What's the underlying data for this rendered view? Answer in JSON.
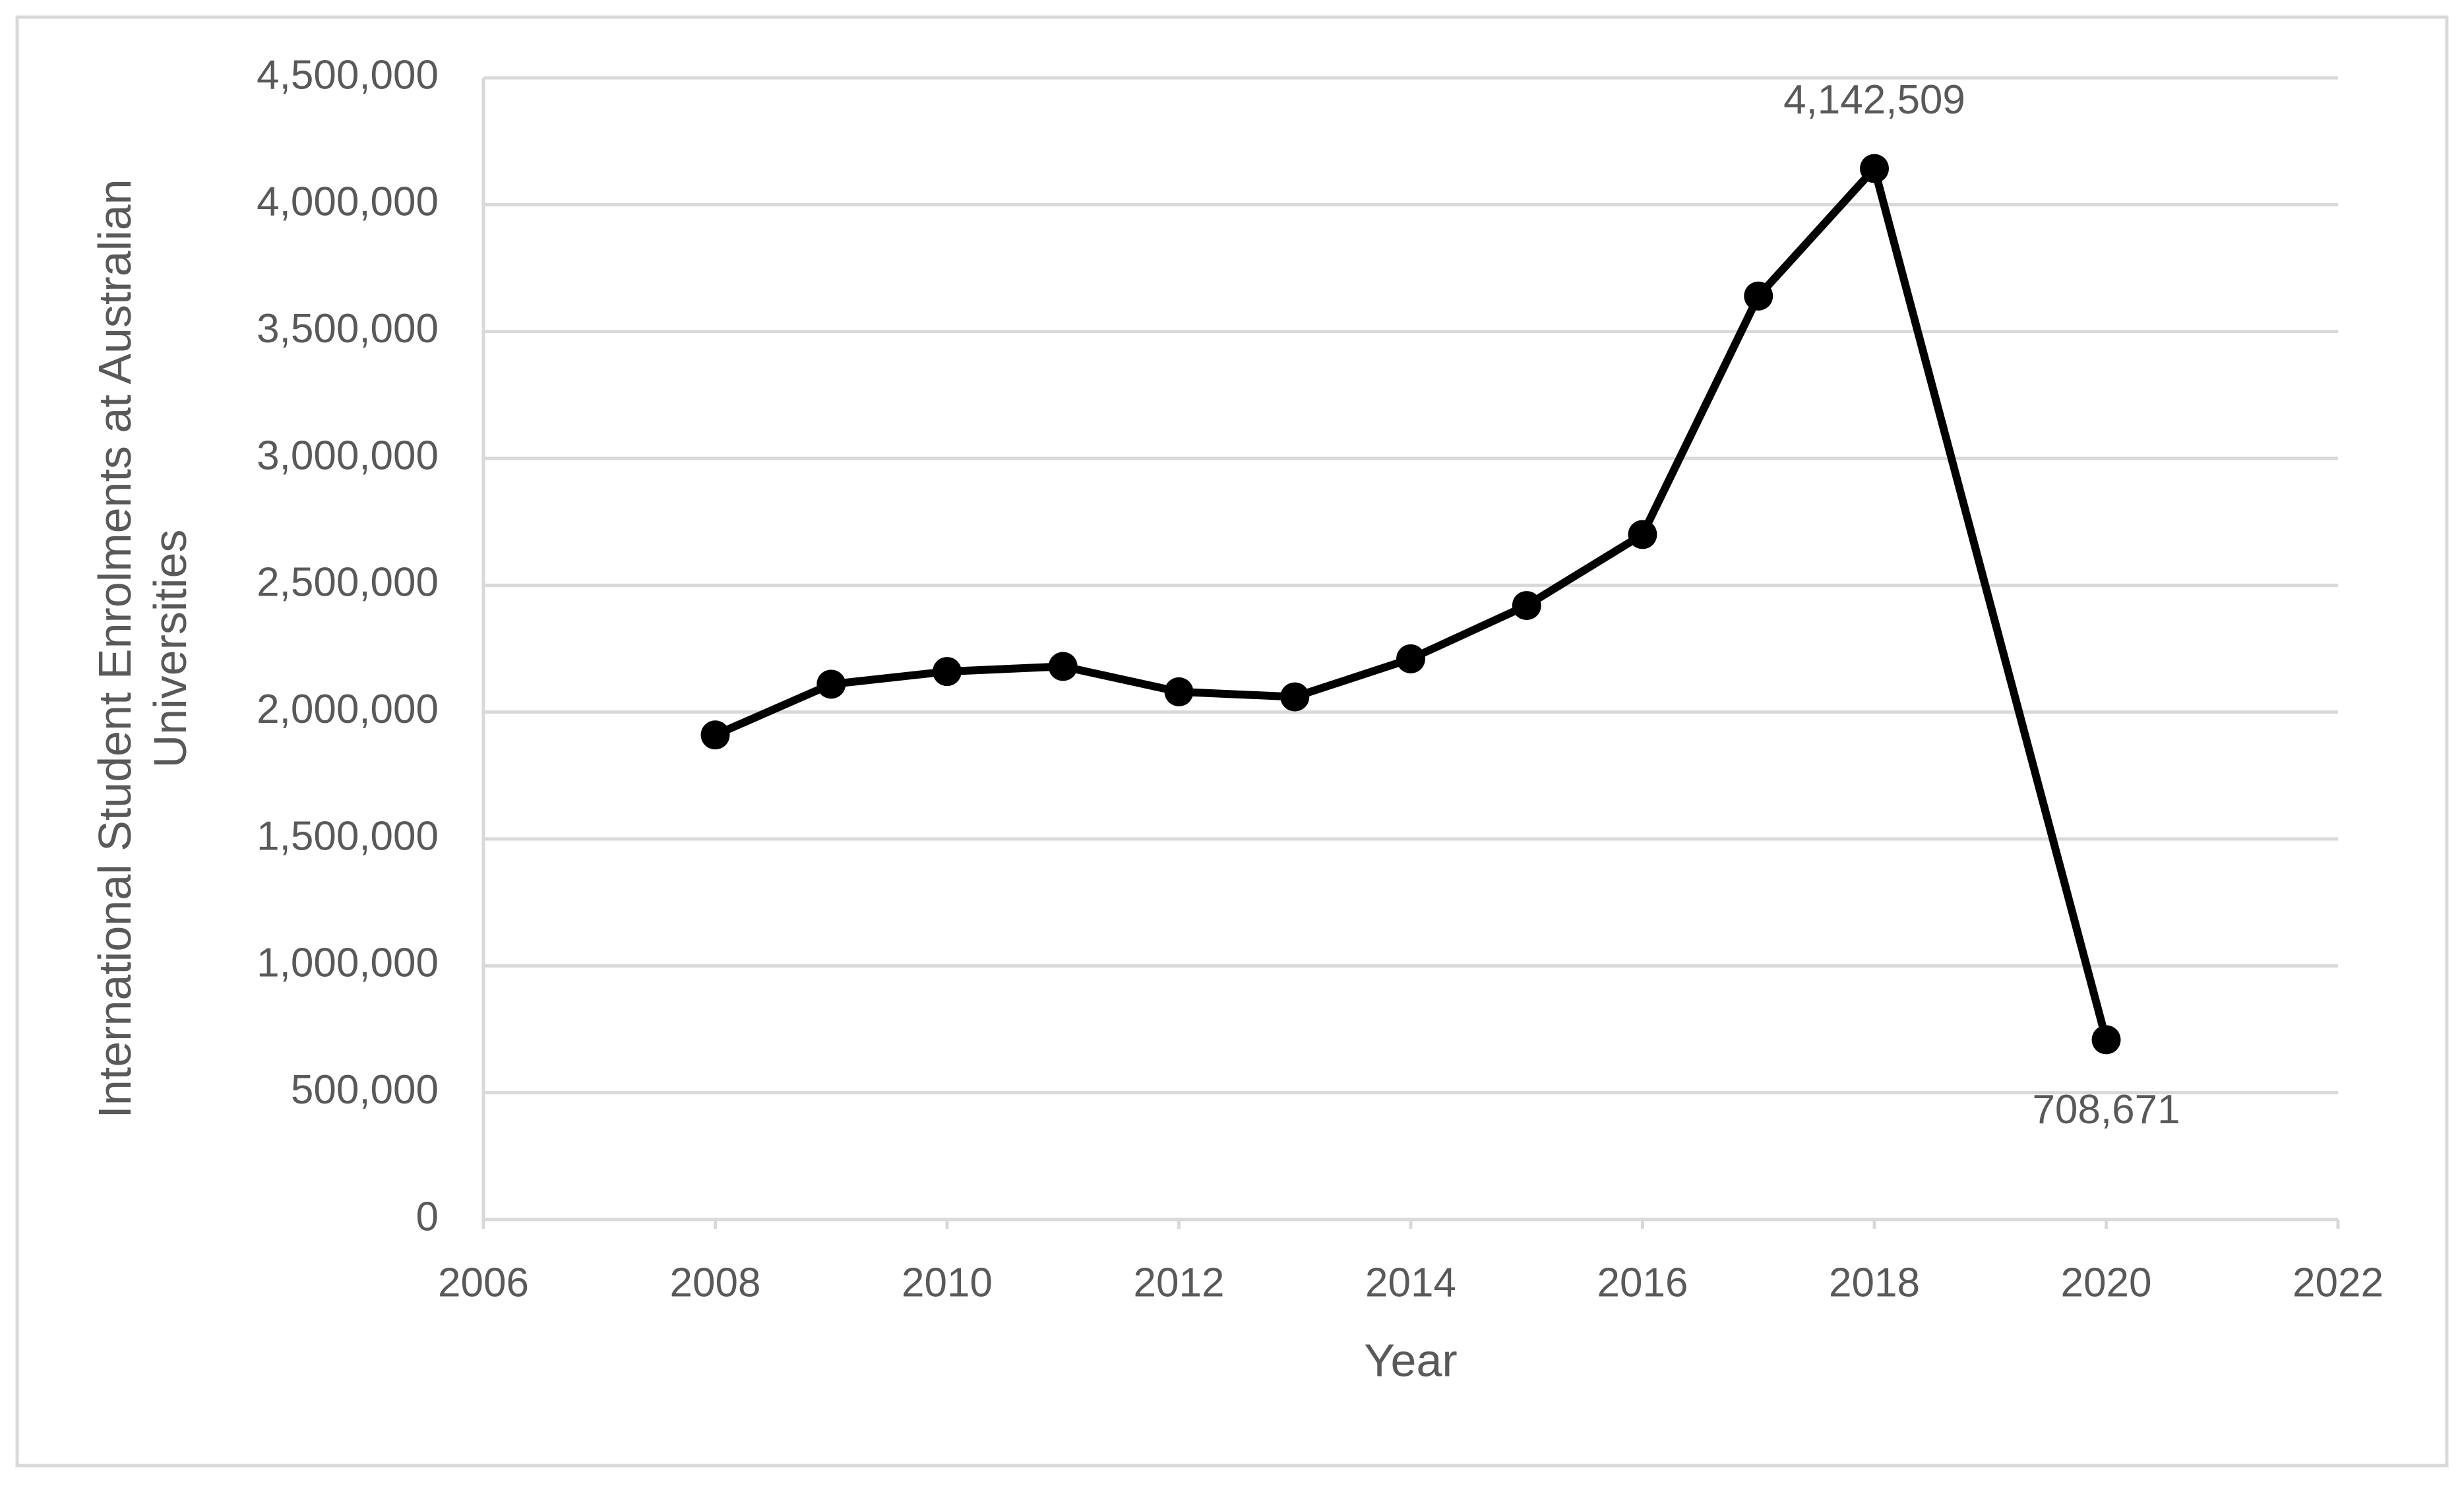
{
  "chart_data": {
    "type": "scatter",
    "subtype": "scatter-with-lines-and-markers",
    "title": "",
    "xlabel": "Year",
    "ylabel": "International Student Enrolments at Australian Universities",
    "xlim": [
      2006,
      2022
    ],
    "ylim": [
      0,
      4500000
    ],
    "x_ticks": [
      "2006",
      "2008",
      "2010",
      "2012",
      "2014",
      "2016",
      "2018",
      "2020",
      "2022"
    ],
    "y_ticks": [
      "0",
      "500,000",
      "1,000,000",
      "1,500,000",
      "2,000,000",
      "2,500,000",
      "3,000,000",
      "3,500,000",
      "4,000,000",
      "4,500,000"
    ],
    "grid": "horizontal",
    "legend": "none",
    "series": [
      {
        "x": [
          2008,
          2009,
          2010,
          2011,
          2012,
          2013,
          2014,
          2015,
          2016,
          2017,
          2018,
          2020
        ],
        "y": [
          1910000,
          2110000,
          2160000,
          2180000,
          2080000,
          2060000,
          2210000,
          2420000,
          2700000,
          3640000,
          4142509,
          708671
        ],
        "color": "#000000"
      }
    ],
    "annotations": [
      {
        "x": 2018,
        "y": 4142509,
        "text": "4,142,509"
      },
      {
        "x": 2020,
        "y": 708671,
        "text": "708,671"
      }
    ]
  }
}
